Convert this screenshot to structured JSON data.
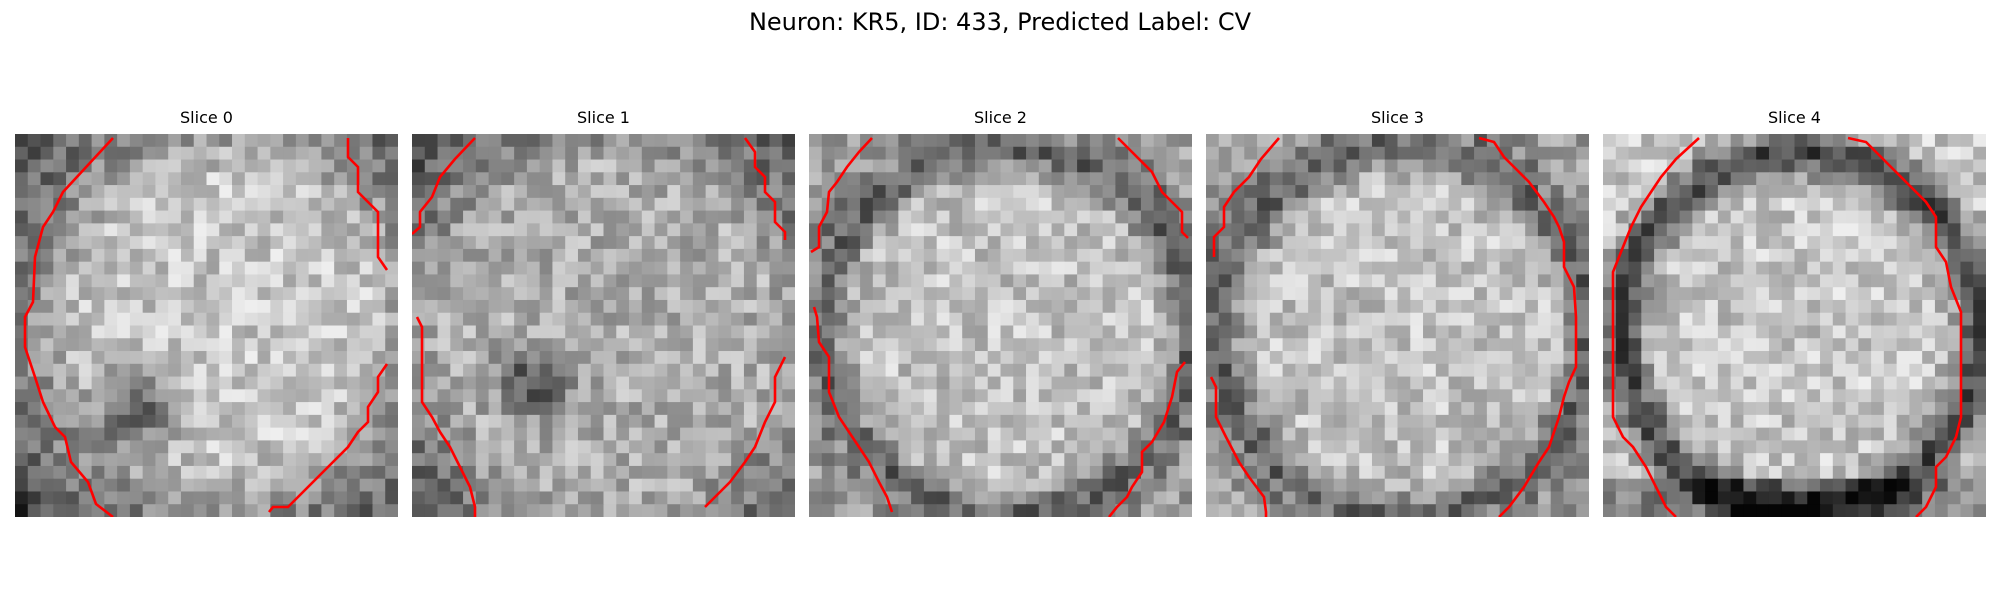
{
  "figure": {
    "title": "Neuron: KR5, ID: 433, Predicted Label: CV"
  },
  "panels": [
    {
      "title": "Slice 0",
      "pattern": "cell-blob-dark-lower-left"
    },
    {
      "title": "Slice 1",
      "pattern": "noisy-texture-dark-spot"
    },
    {
      "title": "Slice 2",
      "pattern": "cell-with-dark-rim"
    },
    {
      "title": "Slice 3",
      "pattern": "cell-with-dark-rim"
    },
    {
      "title": "Slice 4",
      "pattern": "cell-with-dark-rim-bottom"
    }
  ],
  "colors": {
    "contour": "#ff0000",
    "background": "#ffffff"
  }
}
